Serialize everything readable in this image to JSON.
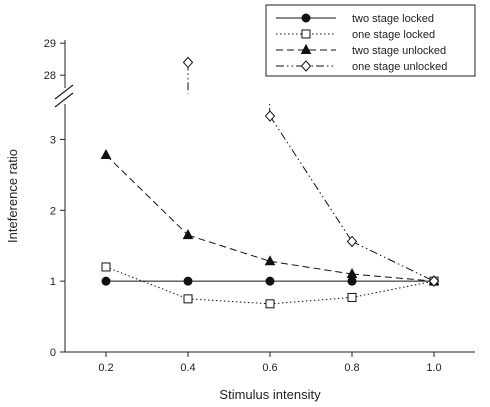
{
  "chart_data": {
    "type": "line",
    "title": "",
    "xlabel": "Stimulus intensity",
    "ylabel": "Inteference ratio",
    "x": [
      0.2,
      0.4,
      0.6,
      0.8,
      1.0
    ],
    "x_tick_labels": [
      "0.2",
      "0.4",
      "0.6",
      "0.8",
      "1.0"
    ],
    "xlim": [
      0.1,
      1.1
    ],
    "y_lower_ticks": [
      "0",
      "1",
      "2",
      "3"
    ],
    "y_upper_ticks": [
      "28",
      "29"
    ],
    "ylim_lower": [
      0,
      3.5
    ],
    "ylim_upper": [
      27.6,
      29.1
    ],
    "axis_break": true,
    "grid": false,
    "legend_position": "top-right",
    "series": [
      {
        "name": "two stage locked",
        "marker": "filled-circle",
        "line": "solid",
        "color": "#111111",
        "values": [
          1.0,
          1.0,
          1.0,
          1.0,
          1.0
        ]
      },
      {
        "name": "one stage locked",
        "marker": "open-square",
        "line": "dotted",
        "color": "#111111",
        "values": [
          1.2,
          0.75,
          0.68,
          0.77,
          1.0
        ]
      },
      {
        "name": "two stage unlocked",
        "marker": "filled-triangle",
        "line": "dashed",
        "color": "#111111",
        "values": [
          2.78,
          1.65,
          1.28,
          1.1,
          1.0
        ]
      },
      {
        "name": "one stage unlocked",
        "marker": "open-diamond",
        "line": "dash-dot-dot",
        "color": "#111111",
        "values": [
          null,
          28.4,
          3.33,
          1.56,
          1.0
        ]
      }
    ]
  }
}
